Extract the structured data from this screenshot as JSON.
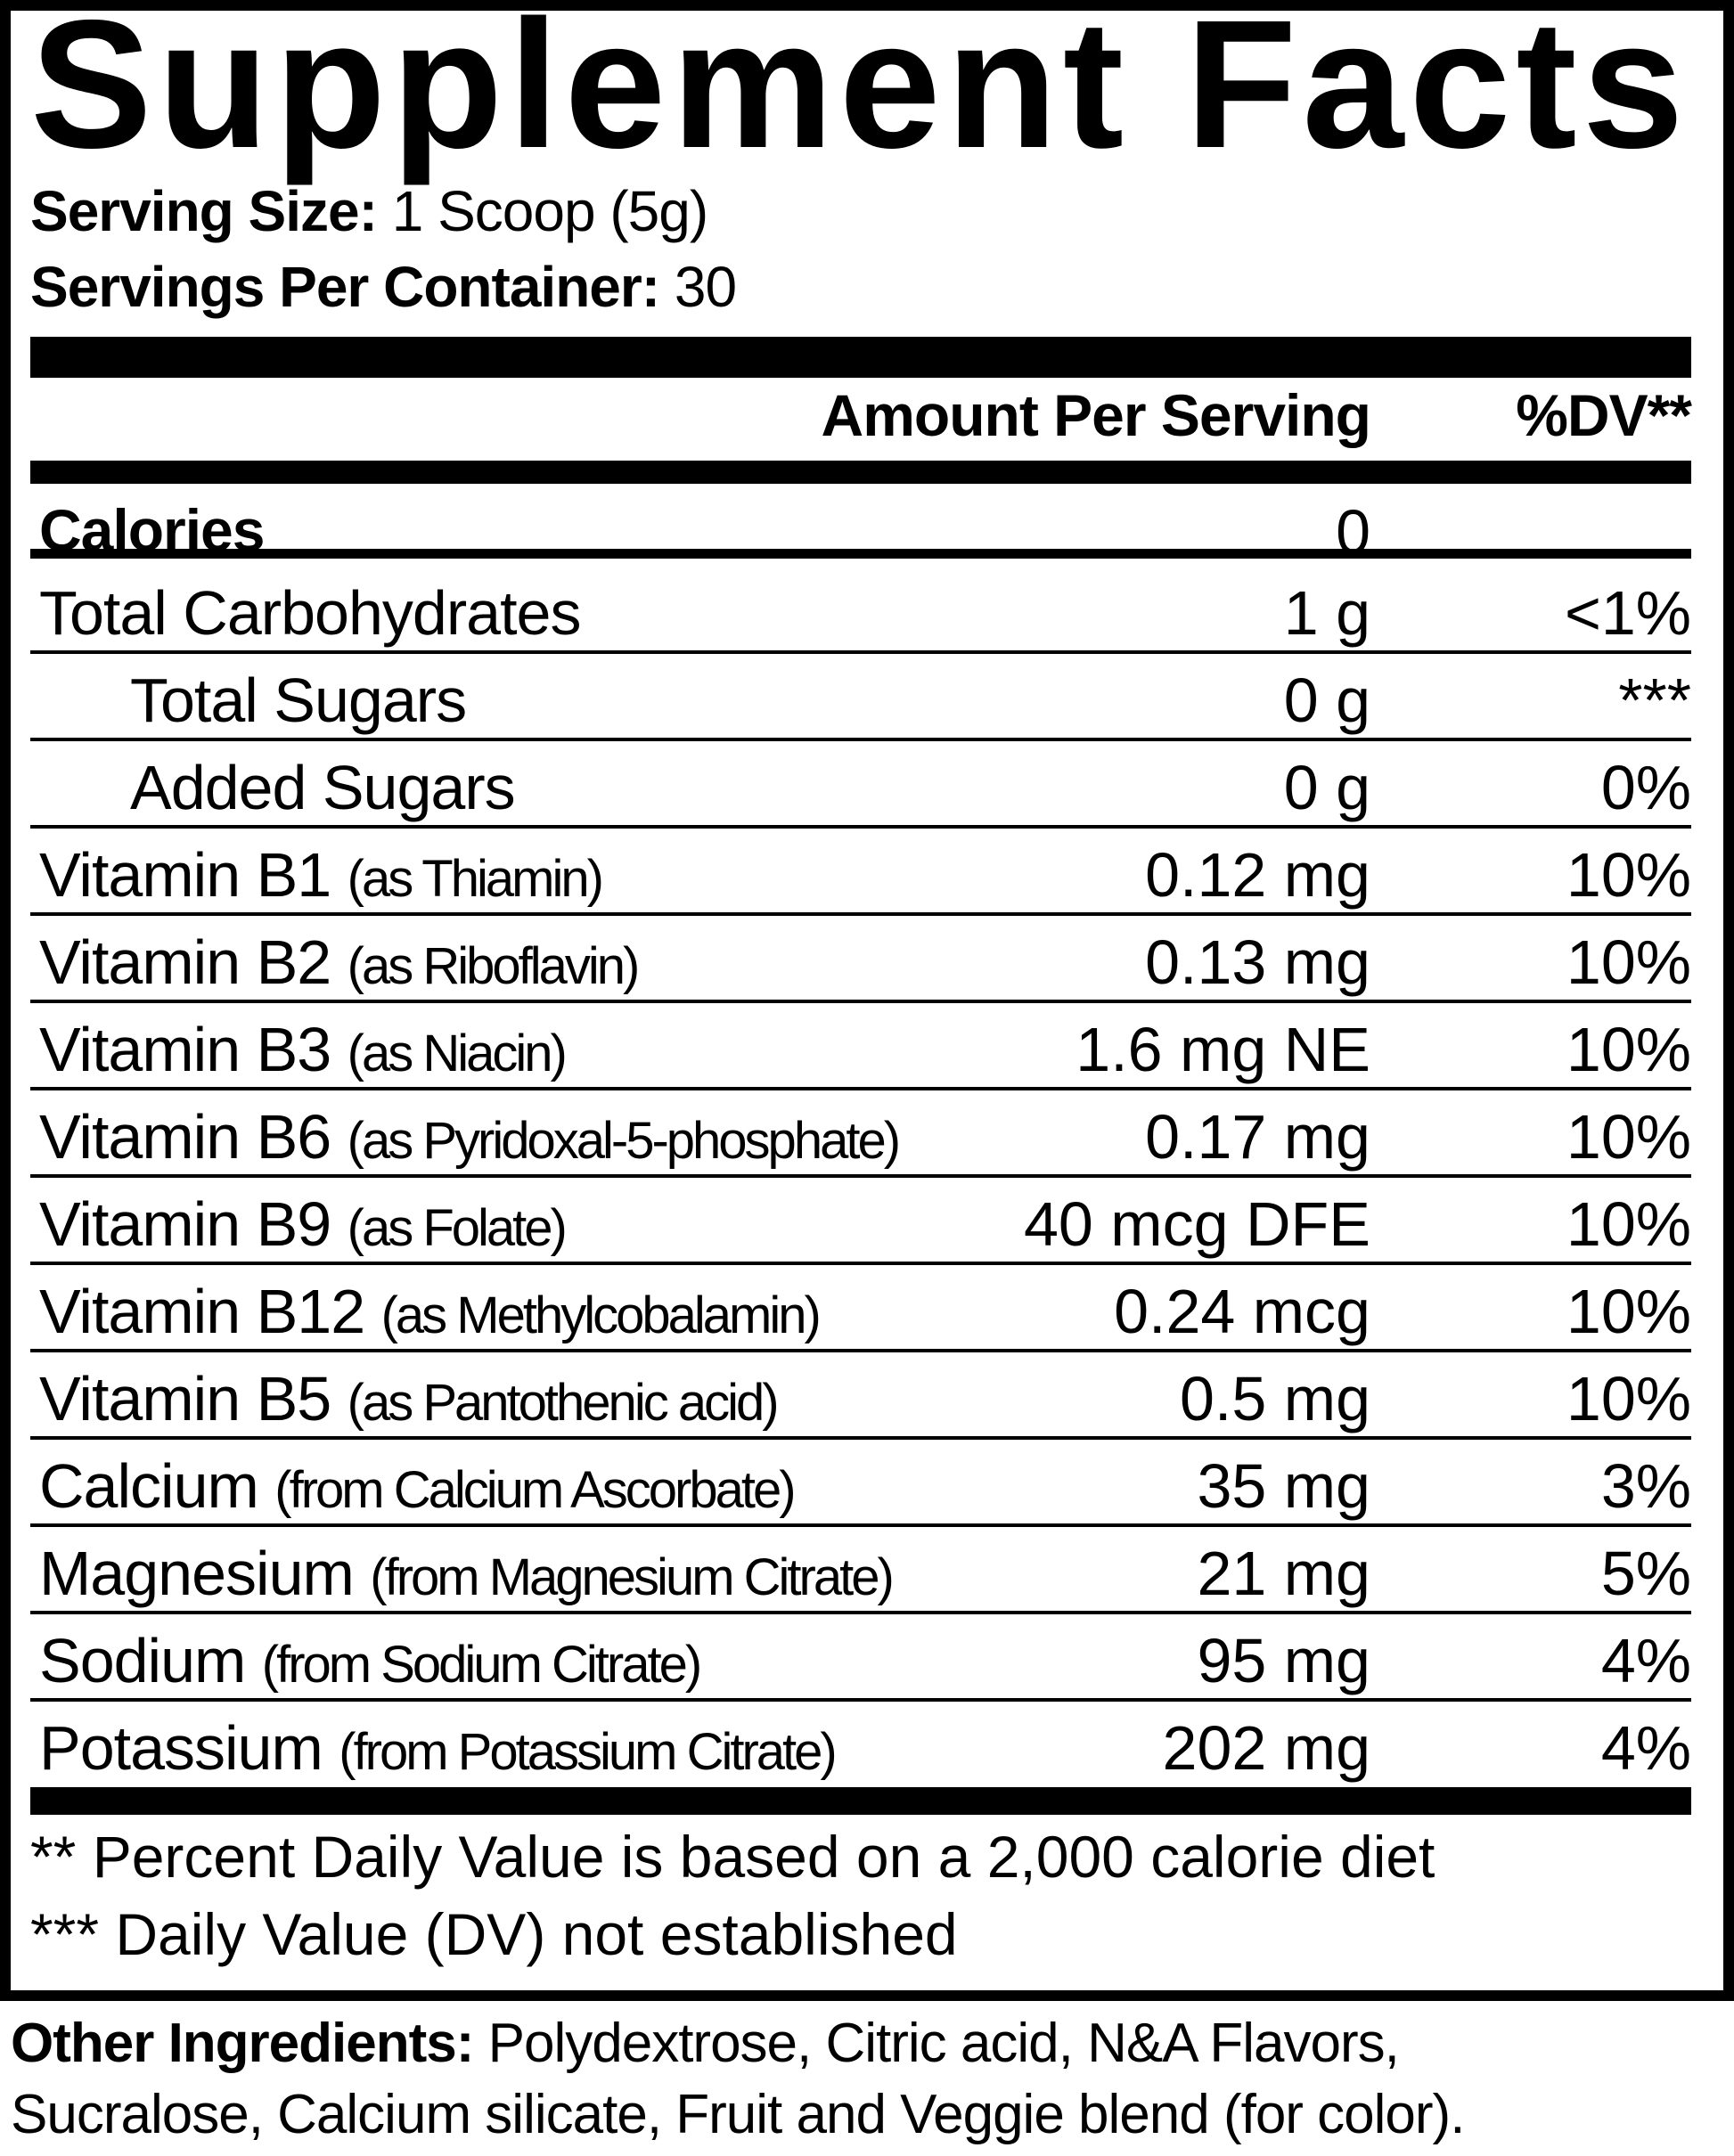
{
  "title": "Supplement Facts",
  "serving_size": {
    "label": "Serving Size:",
    "value": "1 Scoop (5g)"
  },
  "servings_per_container": {
    "label": "Servings Per Container:",
    "value": "30"
  },
  "header": {
    "amount": "Amount Per Serving",
    "dv": "%DV**"
  },
  "rows": [
    {
      "name": "Calories",
      "detail": "",
      "amount": "0",
      "dv": ""
    },
    {
      "name": "Total Carbohydrates",
      "detail": "",
      "amount": "1 g",
      "dv": "<1%"
    },
    {
      "name": "Total Sugars",
      "detail": "",
      "amount": "0 g",
      "dv": "***"
    },
    {
      "name": "Added Sugars",
      "detail": "",
      "amount": "0 g",
      "dv": "0%"
    },
    {
      "name": "Vitamin B1",
      "detail": "(as Thiamin)",
      "amount": "0.12 mg",
      "dv": "10%"
    },
    {
      "name": "Vitamin B2",
      "detail": "(as Riboflavin)",
      "amount": "0.13 mg",
      "dv": "10%"
    },
    {
      "name": "Vitamin B3",
      "detail": "(as Niacin)",
      "amount": "1.6 mg NE",
      "dv": "10%"
    },
    {
      "name": "Vitamin B6",
      "detail": "(as Pyridoxal-5-phosphate)",
      "amount": "0.17 mg",
      "dv": "10%"
    },
    {
      "name": "Vitamin B9",
      "detail": "(as Folate)",
      "amount": "40 mcg DFE",
      "dv": "10%"
    },
    {
      "name": "Vitamin B12",
      "detail": "(as Methylcobalamin)",
      "amount": "0.24 mcg",
      "dv": "10%"
    },
    {
      "name": "Vitamin B5",
      "detail": "(as Pantothenic acid)",
      "amount": "0.5 mg",
      "dv": "10%"
    },
    {
      "name": "Calcium",
      "detail": "(from Calcium Ascorbate)",
      "amount": "35 mg",
      "dv": "3%"
    },
    {
      "name": "Magnesium",
      "detail": "(from Magnesium Citrate)",
      "amount": "21 mg",
      "dv": "5%"
    },
    {
      "name": "Sodium",
      "detail": "(from Sodium Citrate)",
      "amount": "95 mg",
      "dv": "4%"
    },
    {
      "name": "Potassium",
      "detail": "(from Potassium Citrate)",
      "amount": "202 mg",
      "dv": "4%"
    }
  ],
  "footnotes": [
    "** Percent Daily Value is based on a 2,000 calorie diet",
    "*** Daily Value (DV) not established"
  ],
  "other_ingredients": {
    "label": "Other Ingredients:",
    "line1": "Polydextrose, Citric acid, N&A Flavors,",
    "line2": "Sucralose, Calcium silicate, Fruit and Veggie blend (for color)."
  }
}
